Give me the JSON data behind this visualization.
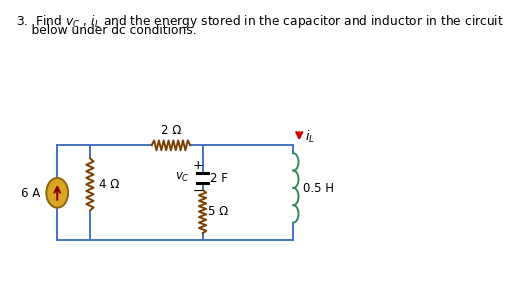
{
  "bg_color": "#ffffff",
  "line_color": "#4472c4",
  "resistor_color": "#7B3F00",
  "inductor_color": "#2E8B57",
  "source_fill": "#DAA520",
  "source_border": "#8B6914",
  "arrow_color": "#cc0000",
  "text_color": "#000000",
  "title_line1": "3.  Find $v_C$ , $i_L$ and the energy stored in the capacitor and inductor in the circuit",
  "title_line2": "    below under dc conditions.",
  "title_fontsize": 8.8,
  "circuit_fontsize": 8.5
}
